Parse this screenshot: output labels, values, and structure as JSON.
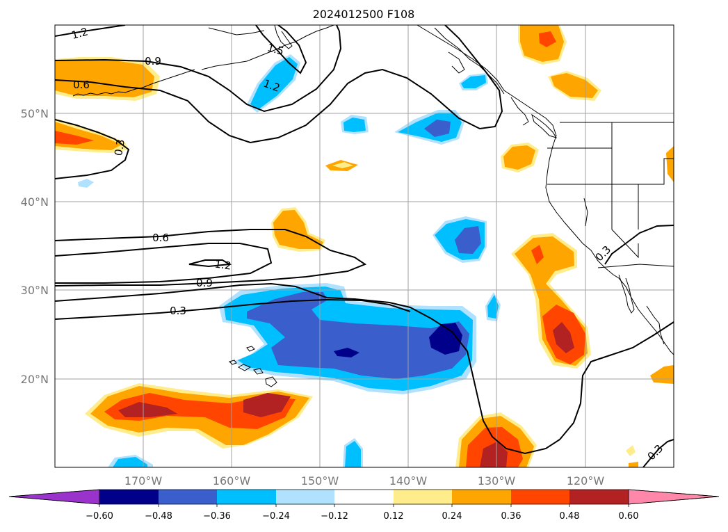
{
  "title": "2024012500 F108",
  "map": {
    "lon_labels": [
      "170°W",
      "160°W",
      "150°W",
      "140°W",
      "130°W",
      "120°W"
    ],
    "lat_labels": [
      "50°N",
      "40°N",
      "30°N",
      "20°N"
    ],
    "contour_labels": [
      "1.2",
      "0.9",
      "0.6",
      "1.5",
      "1.2",
      "0.3",
      "0.6",
      "1.2",
      "0.9",
      "0.3",
      "0.3",
      "0.3"
    ]
  },
  "colorbar": {
    "tick_labels": [
      "−0.60",
      "−0.48",
      "−0.36",
      "−0.24",
      "−0.12",
      "0.12",
      "0.24",
      "0.36",
      "0.48",
      "0.60"
    ],
    "colors": [
      "#9933cc",
      "#00008b",
      "#3a5fcd",
      "#00bfff",
      "#b0e2ff",
      "#ffffff",
      "#ffec8b",
      "#ffa500",
      "#ff4500",
      "#b22222",
      "#ff88aa"
    ]
  },
  "colors": {
    "c_036": "#00008b",
    "c_048": "#3a5fcd",
    "c_024": "#00bfff",
    "c_012": "#b0e2ff",
    "p_012": "#ffec8b",
    "p_024": "#ffa500",
    "p_036": "#ff4500",
    "p_048": "#b22222"
  }
}
